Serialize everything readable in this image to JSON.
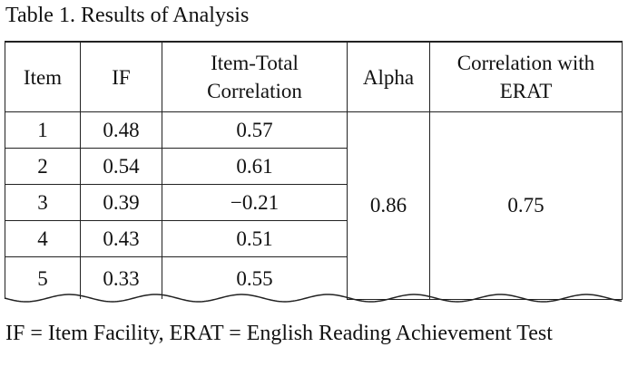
{
  "title": "Table 1. Results of Analysis",
  "table": {
    "header": [
      "Item",
      "IF",
      "Item-Total Correlation",
      "Alpha",
      "Correlation with ERAT"
    ],
    "rows": [
      [
        "1",
        "0.48",
        "0.57"
      ],
      [
        "2",
        "0.54",
        "0.61"
      ],
      [
        "3",
        "0.39",
        "−0.21"
      ],
      [
        "4",
        "0.43",
        "0.51"
      ],
      [
        "5",
        "0.33",
        "0.55"
      ]
    ],
    "alpha": "0.86",
    "correlation": "0.75"
  },
  "note": "IF = Item Facility, ERAT = English Reading Achievement Test"
}
